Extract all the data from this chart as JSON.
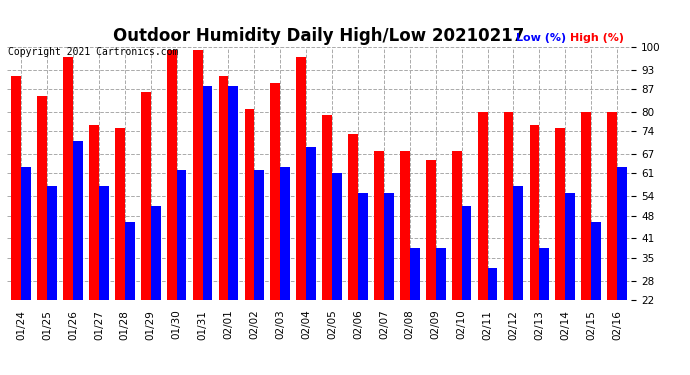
{
  "title": "Outdoor Humidity Daily High/Low 20210217",
  "copyright": "Copyright 2021 Cartronics.com",
  "legend_low": "Low (%)",
  "legend_high": "High (%)",
  "dates": [
    "01/24",
    "01/25",
    "01/26",
    "01/27",
    "01/28",
    "01/29",
    "01/30",
    "01/31",
    "02/01",
    "02/02",
    "02/03",
    "02/04",
    "02/05",
    "02/06",
    "02/07",
    "02/08",
    "02/09",
    "02/10",
    "02/11",
    "02/12",
    "02/13",
    "02/14",
    "02/15",
    "02/16"
  ],
  "high": [
    91,
    85,
    97,
    76,
    75,
    86,
    99,
    99,
    91,
    81,
    89,
    97,
    79,
    73,
    68,
    68,
    65,
    68,
    80,
    80,
    76,
    75,
    80,
    80
  ],
  "low": [
    63,
    57,
    71,
    57,
    46,
    51,
    62,
    88,
    88,
    62,
    63,
    69,
    61,
    55,
    55,
    38,
    38,
    51,
    32,
    57,
    38,
    55,
    46,
    63
  ],
  "ylim_min": 22,
  "ylim_max": 100,
  "yticks": [
    22,
    28,
    35,
    41,
    48,
    54,
    61,
    67,
    74,
    80,
    87,
    93,
    100
  ],
  "bar_color_high": "#ff0000",
  "bar_color_low": "#0000ff",
  "bg_color": "#ffffff",
  "grid_color": "#aaaaaa",
  "title_fontsize": 12,
  "copyright_fontsize": 7,
  "legend_fontsize": 8,
  "tick_fontsize": 7.5
}
